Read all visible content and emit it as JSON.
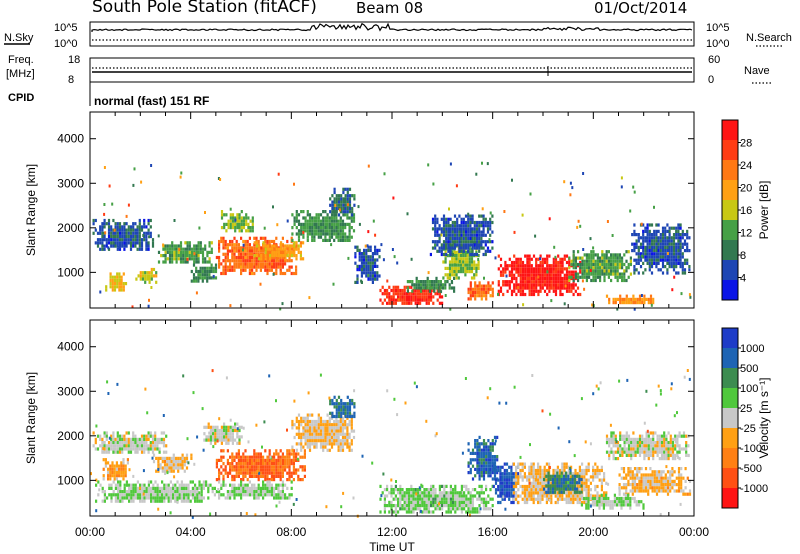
{
  "header": {
    "title": "South Pole Station (fitACF)",
    "beam": "Beam 08",
    "date": "01/Oct/2014"
  },
  "noise_panel": {
    "left_label": "N.Sky",
    "right_label": "N.Search",
    "tick_top": "10^5",
    "tick_bottom": "10^0"
  },
  "freq_panel": {
    "left_label_1": "Freq.",
    "left_label_2": "[MHz]",
    "right_label": "Nave",
    "left_tick_top": "18",
    "left_tick_bottom": "8",
    "right_tick_top": "60",
    "right_tick_bottom": "0"
  },
  "cpid": {
    "label": "CPID",
    "value": "normal (fast) 151 RF"
  },
  "x_axis": {
    "label": "Time UT",
    "ticks": [
      "00:00",
      "04:00",
      "08:00",
      "12:00",
      "16:00",
      "20:00",
      "00:00"
    ]
  },
  "colors": {
    "power": [
      "#0a14e6",
      "#1e46b4",
      "#327850",
      "#46a046",
      "#c8c814",
      "#ffa014",
      "#ff7814",
      "#ff3c14",
      "#ff1414"
    ],
    "velocity": [
      "#1e3cc8",
      "#1e64b4",
      "#3c8c50",
      "#50c83c",
      "#c8c8c8",
      "#ffa014",
      "#ff8014",
      "#ff5014",
      "#ff1414"
    ]
  },
  "chart_data": [
    {
      "type": "heatmap",
      "name": "power",
      "ylabel": "Slant Range [km]",
      "ylim": [
        200,
        4600
      ],
      "yticks": [
        "1000",
        "2000",
        "3000",
        "4000"
      ],
      "xlim": [
        0,
        24
      ],
      "colorbar": {
        "label": "Power [dB]",
        "ticks": [
          "4",
          "8",
          "12",
          "16",
          "20",
          "24",
          "28"
        ],
        "range": [
          0,
          32
        ]
      },
      "regions": [
        {
          "t": [
            0.1,
            2.5
          ],
          "r": [
            1500,
            2200
          ],
          "v": 6
        },
        {
          "t": [
            0.6,
            1.4
          ],
          "r": [
            600,
            1000
          ],
          "v": 18
        },
        {
          "t": [
            1.8,
            2.6
          ],
          "r": [
            800,
            1100
          ],
          "v": 16
        },
        {
          "t": [
            2.7,
            4.8
          ],
          "r": [
            1200,
            1700
          ],
          "v": 12
        },
        {
          "t": [
            4.0,
            5.0
          ],
          "r": [
            800,
            1200
          ],
          "v": 10
        },
        {
          "t": [
            5.0,
            8.2
          ],
          "r": [
            1000,
            1800
          ],
          "v": 24
        },
        {
          "t": [
            5.2,
            6.5
          ],
          "r": [
            1900,
            2400
          ],
          "v": 14
        },
        {
          "t": [
            6.5,
            8.5
          ],
          "r": [
            1300,
            1700
          ],
          "v": 20
        },
        {
          "t": [
            8.0,
            10.5
          ],
          "r": [
            1700,
            2400
          ],
          "v": 11
        },
        {
          "t": [
            9.5,
            10.5
          ],
          "r": [
            2300,
            2900
          ],
          "v": 8
        },
        {
          "t": [
            10.5,
            11.5
          ],
          "r": [
            800,
            1600
          ],
          "v": 6
        },
        {
          "t": [
            11.5,
            14.0
          ],
          "r": [
            300,
            700
          ],
          "v": 28
        },
        {
          "t": [
            12.5,
            14.5
          ],
          "r": [
            600,
            900
          ],
          "v": 10
        },
        {
          "t": [
            14.0,
            15.5
          ],
          "r": [
            900,
            1700
          ],
          "v": 14
        },
        {
          "t": [
            15.0,
            16.0
          ],
          "r": [
            400,
            800
          ],
          "v": 24
        },
        {
          "t": [
            16.2,
            19.5
          ],
          "r": [
            500,
            1400
          ],
          "v": 30
        },
        {
          "t": [
            19.0,
            21.5
          ],
          "r": [
            800,
            1500
          ],
          "v": 12
        },
        {
          "t": [
            21.5,
            23.8
          ],
          "r": [
            1000,
            2100
          ],
          "v": 6
        },
        {
          "t": [
            20.5,
            22.5
          ],
          "r": [
            300,
            500
          ],
          "v": 22
        },
        {
          "t": [
            13.5,
            16.0
          ],
          "r": [
            1400,
            2300
          ],
          "v": 6
        }
      ]
    },
    {
      "type": "heatmap",
      "name": "velocity",
      "ylabel": "Slant Range [km]",
      "ylim": [
        200,
        4600
      ],
      "yticks": [
        "1000",
        "2000",
        "3000",
        "4000"
      ],
      "xlim": [
        0,
        24
      ],
      "colorbar": {
        "label": "Velocity [m s⁻¹]",
        "ticks": [
          "1000",
          "500",
          "100",
          "25",
          "-25",
          "-100",
          "-500",
          "-1000"
        ],
        "range": [
          -1200,
          1200
        ]
      },
      "regions": [
        {
          "t": [
            0.1,
            3.0
          ],
          "r": [
            1600,
            2100
          ],
          "v": 0
        },
        {
          "t": [
            0.2,
            5.0
          ],
          "r": [
            500,
            1000
          ],
          "v": 150
        },
        {
          "t": [
            0.5,
            1.5
          ],
          "r": [
            1000,
            1500
          ],
          "v": -300
        },
        {
          "t": [
            2.5,
            4.0
          ],
          "r": [
            1200,
            1600
          ],
          "v": -200
        },
        {
          "t": [
            4.5,
            6.0
          ],
          "r": [
            1800,
            2300
          ],
          "v": 5
        },
        {
          "t": [
            5.0,
            8.5
          ],
          "r": [
            1000,
            1700
          ],
          "v": -700
        },
        {
          "t": [
            5.0,
            8.0
          ],
          "r": [
            600,
            1000
          ],
          "v": 150
        },
        {
          "t": [
            8.0,
            10.5
          ],
          "r": [
            1700,
            2500
          ],
          "v": -120
        },
        {
          "t": [
            9.5,
            10.5
          ],
          "r": [
            2400,
            2900
          ],
          "v": 700
        },
        {
          "t": [
            11.5,
            16.0
          ],
          "r": [
            300,
            900
          ],
          "v": 200
        },
        {
          "t": [
            15.0,
            16.2
          ],
          "r": [
            1000,
            2000
          ],
          "v": 800
        },
        {
          "t": [
            16.0,
            17.0
          ],
          "r": [
            500,
            1400
          ],
          "v": 900
        },
        {
          "t": [
            16.8,
            20.5
          ],
          "r": [
            500,
            1400
          ],
          "v": -150
        },
        {
          "t": [
            18.0,
            19.5
          ],
          "r": [
            700,
            1200
          ],
          "v": 600
        },
        {
          "t": [
            20.5,
            23.8
          ],
          "r": [
            1500,
            2100
          ],
          "v": 5
        },
        {
          "t": [
            21.0,
            23.8
          ],
          "r": [
            700,
            1300
          ],
          "v": -200
        },
        {
          "t": [
            19.5,
            22.0
          ],
          "r": [
            400,
            700
          ],
          "v": 150
        }
      ]
    }
  ]
}
